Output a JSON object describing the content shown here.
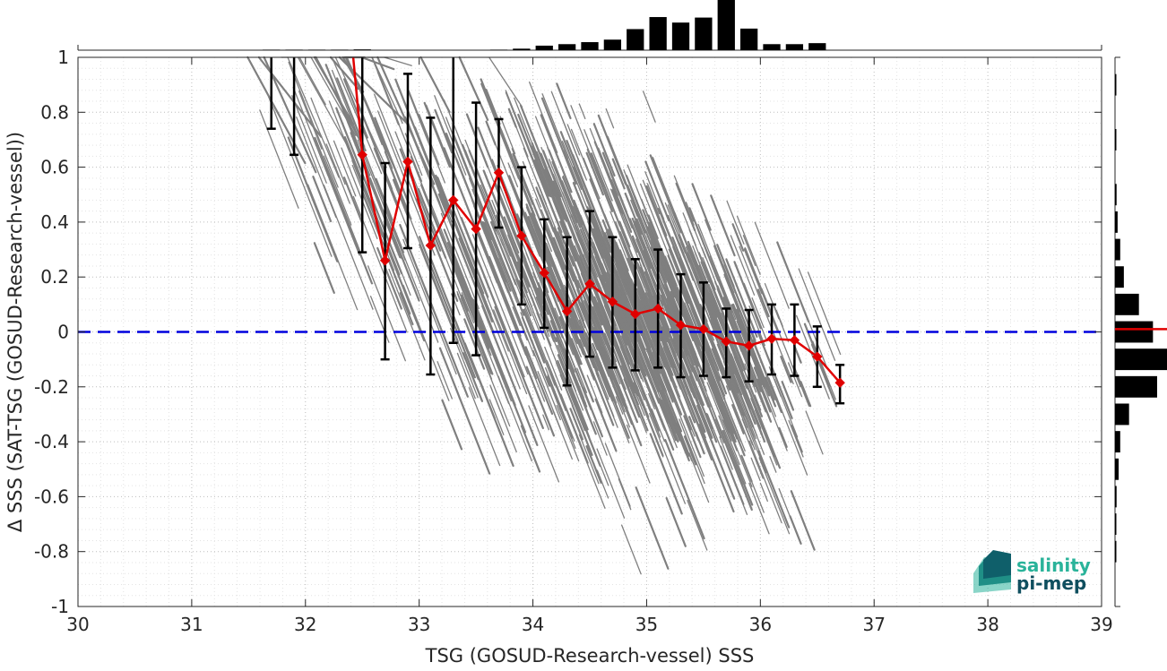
{
  "chart_data": {
    "type": "scatter",
    "xlabel": "TSG (GOSUD-Research-vessel) SSS",
    "ylabel": "Δ SSS (SAT-TSG (GOSUD-Research-vessel))",
    "xlim": [
      30,
      39
    ],
    "ylim": [
      -1,
      1
    ],
    "xticks": [
      "30",
      "31",
      "32",
      "33",
      "34",
      "35",
      "36",
      "37",
      "38",
      "39"
    ],
    "yticks": [
      "-1",
      "-0.8",
      "-0.6",
      "-0.4",
      "-0.2",
      "0",
      "0.2",
      "0.4",
      "0.6",
      "0.8",
      "1"
    ],
    "grid": "minor-dotted",
    "zero_line": {
      "y": 0,
      "color": "#0000dd",
      "style": "dashed"
    },
    "binned_mean": {
      "color": "#e00000",
      "x": [
        32.5,
        32.7,
        32.9,
        33.1,
        33.3,
        33.5,
        33.7,
        33.9,
        34.1,
        34.3,
        34.5,
        34.7,
        34.9,
        35.1,
        35.3,
        35.5,
        35.7,
        35.9,
        36.1,
        36.3,
        36.5,
        36.7
      ],
      "y": [
        0.645,
        0.26,
        0.62,
        0.315,
        0.48,
        0.375,
        0.58,
        0.35,
        0.215,
        0.075,
        0.175,
        0.11,
        0.065,
        0.085,
        0.025,
        0.01,
        -0.035,
        -0.05,
        -0.025,
        -0.03,
        -0.09,
        -0.185
      ],
      "line_start": {
        "x": 32.42,
        "y": 1.0
      }
    },
    "error_bars": {
      "color": "#000000",
      "x": [
        31.7,
        31.9,
        32.5,
        32.7,
        32.9,
        33.1,
        33.3,
        33.5,
        33.7,
        33.9,
        34.1,
        34.3,
        34.5,
        34.7,
        34.9,
        35.1,
        35.3,
        35.5,
        35.7,
        35.9,
        36.1,
        36.3,
        36.5,
        36.7
      ],
      "lower": [
        0.74,
        0.645,
        0.29,
        -0.1,
        0.305,
        -0.155,
        -0.04,
        -0.085,
        0.38,
        0.1,
        0.015,
        -0.195,
        -0.09,
        -0.13,
        -0.14,
        -0.13,
        -0.165,
        -0.16,
        -0.165,
        -0.18,
        -0.155,
        -0.16,
        -0.2,
        -0.26
      ],
      "upper": [
        1.0,
        1.0,
        1.0,
        0.615,
        0.94,
        0.78,
        1.0,
        0.835,
        0.775,
        0.6,
        0.41,
        0.345,
        0.44,
        0.345,
        0.265,
        0.3,
        0.21,
        0.18,
        0.085,
        0.08,
        0.1,
        0.1,
        0.02,
        -0.12
      ]
    },
    "scatter_cloud": {
      "color": "#7f7f7f"
    },
    "top_histogram": {
      "color": "#000000",
      "bin_centers": [
        31.7,
        31.9,
        32.1,
        32.3,
        32.5,
        32.7,
        32.9,
        33.1,
        33.3,
        33.5,
        33.7,
        33.9,
        34.1,
        34.3,
        34.5,
        34.7,
        34.9,
        35.1,
        35.3,
        35.5,
        35.7,
        35.9,
        36.1,
        36.3,
        36.5
      ],
      "relative_heights": [
        0.01,
        0.01,
        0.01,
        0.01,
        0.015,
        0.0,
        0.0,
        0.0,
        0.0,
        0.0,
        0.01,
        0.03,
        0.09,
        0.12,
        0.16,
        0.21,
        0.42,
        0.66,
        0.55,
        0.65,
        1.0,
        0.43,
        0.12,
        0.12,
        0.14
      ]
    },
    "right_histogram": {
      "color": "#000000",
      "median_line_color": "#e00000",
      "median_value": 0.01,
      "bin_centers": [
        0.9,
        0.7,
        0.5,
        0.4,
        0.3,
        0.2,
        0.1,
        0.0,
        -0.1,
        -0.2,
        -0.3,
        -0.4,
        -0.5,
        -0.6,
        -0.7,
        -0.8
      ],
      "relative_heights": [
        0.01,
        0.02,
        0.03,
        0.05,
        0.1,
        0.17,
        0.46,
        0.73,
        1.0,
        0.81,
        0.27,
        0.1,
        0.07,
        0.03,
        0.02,
        0.01
      ]
    }
  },
  "logo": {
    "line1": "salinity",
    "line2": "pi-mep",
    "colors": {
      "teal": "#2ab39a",
      "dark": "#0f4f5f"
    }
  }
}
